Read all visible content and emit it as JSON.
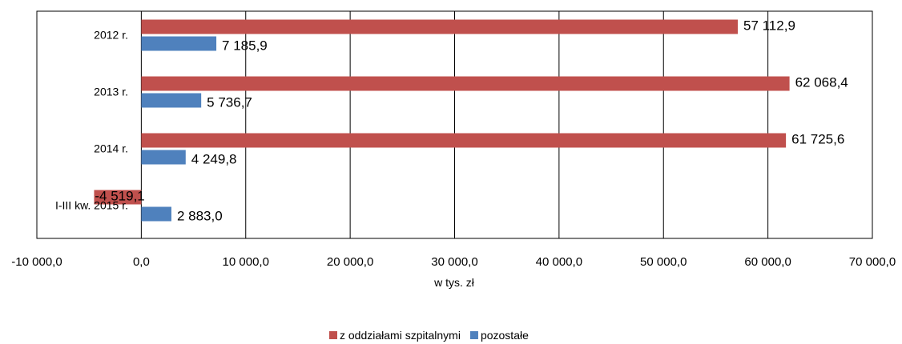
{
  "chart_data": {
    "type": "bar",
    "orientation": "horizontal",
    "categories": [
      "2012 r.",
      "2013 r.",
      "2014 r.",
      "I-III kw. 2015 r."
    ],
    "series": [
      {
        "name": "z oddziałami szpitalnymi",
        "color": "#c0504d",
        "values": [
          57112.9,
          62068.4,
          61725.6,
          -4519.1
        ],
        "labels": [
          "57 112,9",
          "62 068,4",
          "61 725,6",
          "-4 519,1"
        ]
      },
      {
        "name": "pozostałe",
        "color": "#4f81bd",
        "values": [
          7185.9,
          5736.7,
          4249.8,
          2883.0
        ],
        "labels": [
          "7 185,9",
          "5 736,7",
          "4 249,8",
          "2 883,0"
        ]
      }
    ],
    "xlim": [
      -10000,
      70000
    ],
    "xticks": [
      -10000,
      0,
      10000,
      20000,
      30000,
      40000,
      50000,
      60000,
      70000
    ],
    "xtick_labels": [
      "-10 000,0",
      "0,0",
      "10 000,0",
      "20 000,0",
      "30 000,0",
      "40 000,0",
      "50 000,0",
      "60 000,0",
      "70 000,0"
    ],
    "xlabel": "w tys. zł",
    "ylabel": "",
    "title": "",
    "grid": "vertical",
    "legend_position": "bottom"
  }
}
